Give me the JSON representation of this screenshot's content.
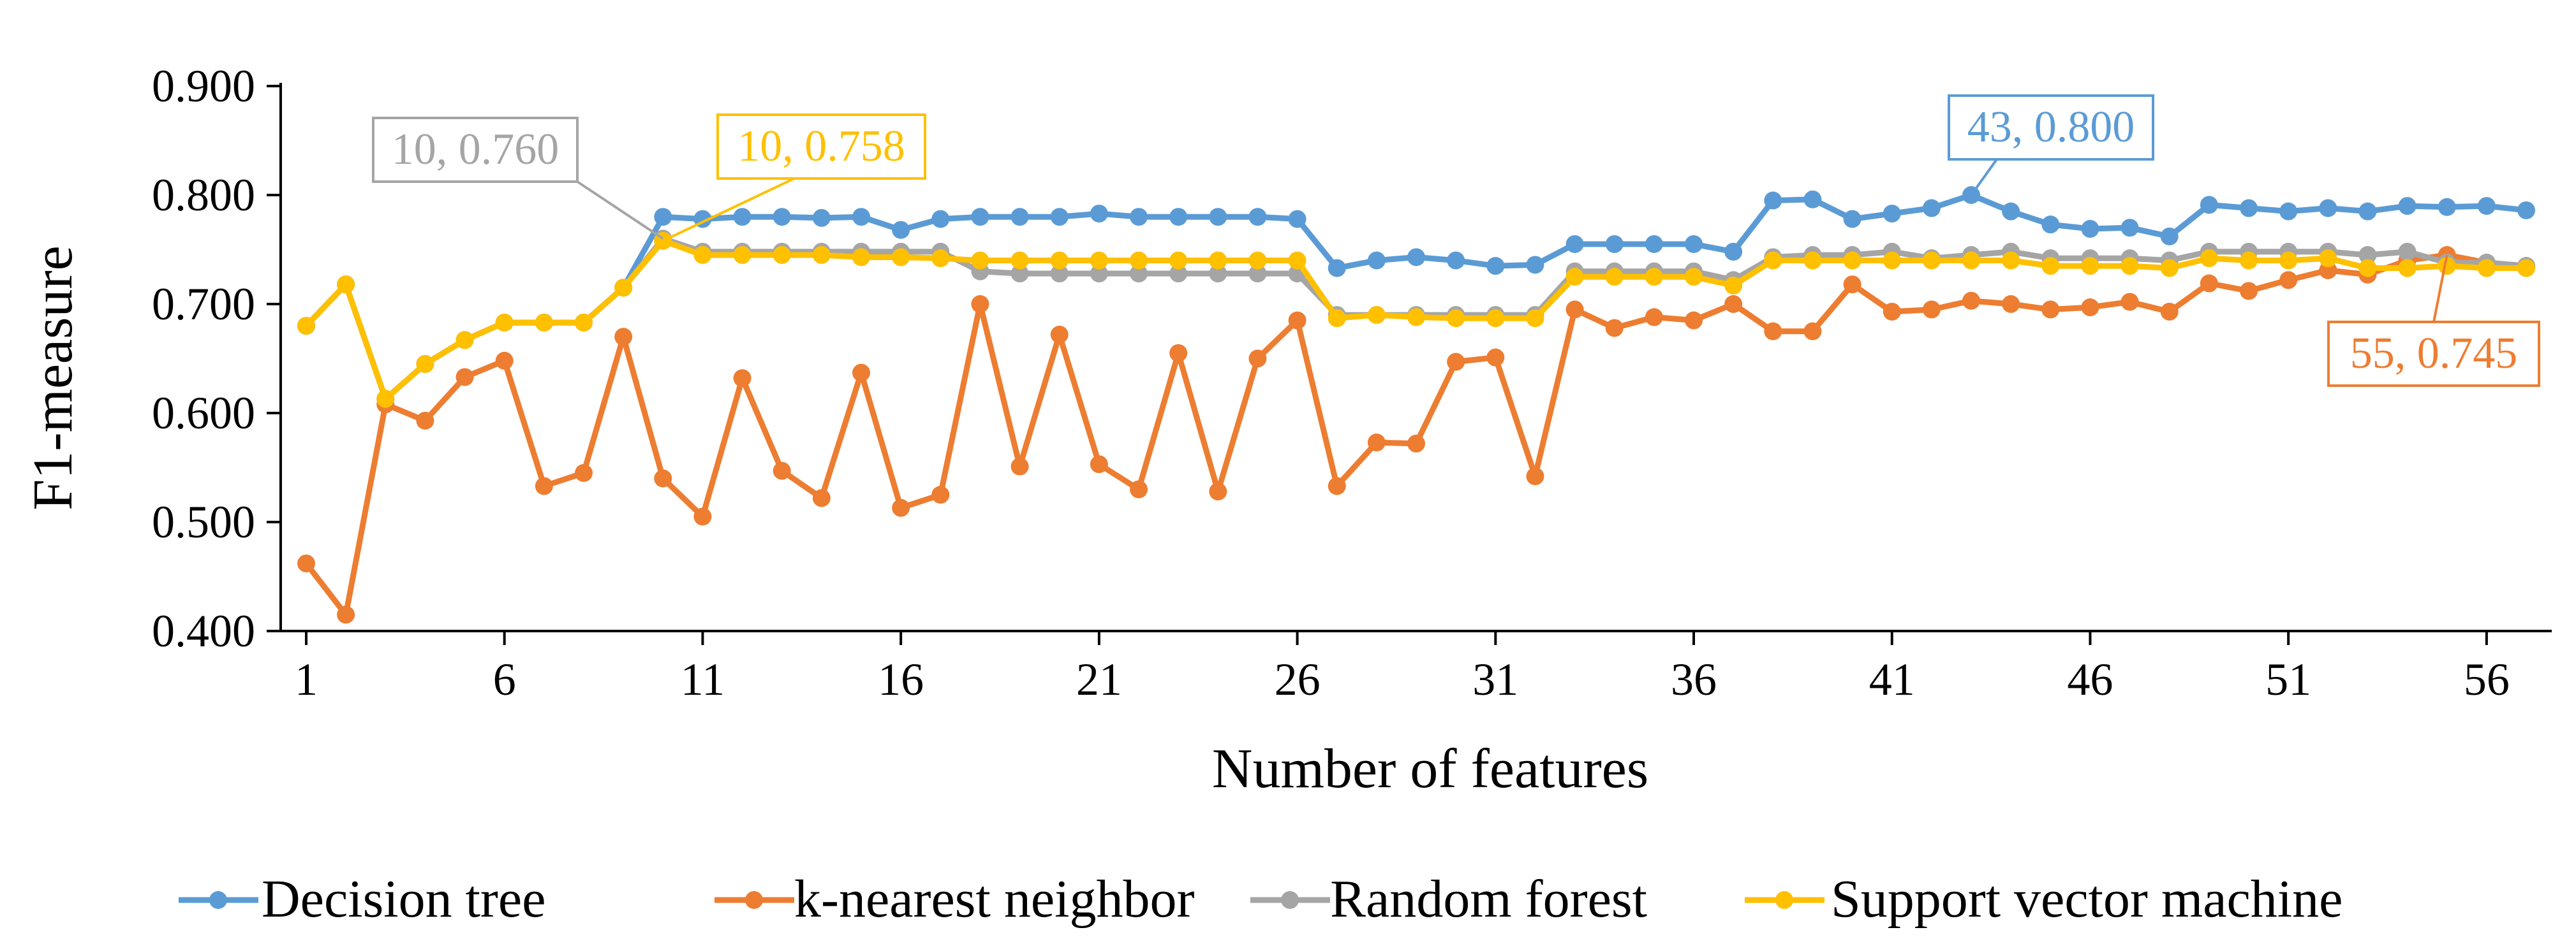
{
  "chart_data": {
    "type": "line",
    "title": "",
    "xlabel": "Number of features",
    "ylabel": "F1-measure",
    "x": [
      1,
      2,
      3,
      4,
      5,
      6,
      7,
      8,
      9,
      10,
      11,
      12,
      13,
      14,
      15,
      16,
      17,
      18,
      19,
      20,
      21,
      22,
      23,
      24,
      25,
      26,
      27,
      28,
      29,
      30,
      31,
      32,
      33,
      34,
      35,
      36,
      37,
      38,
      39,
      40,
      41,
      42,
      43,
      44,
      45,
      46,
      47,
      48,
      49,
      50,
      51,
      52,
      53,
      54,
      55,
      56,
      57
    ],
    "xlim": [
      1,
      57
    ],
    "ylim": [
      0.4,
      0.9
    ],
    "x_ticks": [
      1,
      6,
      11,
      16,
      21,
      26,
      31,
      36,
      41,
      46,
      51,
      56
    ],
    "x_tick_labels": [
      "1",
      "6",
      "11",
      "16",
      "21",
      "26",
      "31",
      "36",
      "41",
      "46",
      "51",
      "56"
    ],
    "y_ticks": [
      0.4,
      0.5,
      0.6,
      0.7,
      0.8,
      0.9
    ],
    "y_tick_labels": [
      "0.400",
      "0.500",
      "0.600",
      "0.700",
      "0.800",
      "0.900"
    ],
    "grid": false,
    "legend_position": "bottom",
    "series": [
      {
        "name": "Decision tree",
        "color": "#5B9BD5",
        "values": [
          0.68,
          0.718,
          0.613,
          0.645,
          0.667,
          0.683,
          0.683,
          0.683,
          0.715,
          0.78,
          0.778,
          0.78,
          0.78,
          0.779,
          0.78,
          0.768,
          0.778,
          0.78,
          0.78,
          0.78,
          0.783,
          0.78,
          0.78,
          0.78,
          0.78,
          0.778,
          0.733,
          0.74,
          0.743,
          0.74,
          0.735,
          0.736,
          0.755,
          0.755,
          0.755,
          0.755,
          0.748,
          0.795,
          0.796,
          0.778,
          0.783,
          0.788,
          0.8,
          0.785,
          0.773,
          0.769,
          0.77,
          0.762,
          0.791,
          0.788,
          0.785,
          0.788,
          0.785,
          0.79,
          0.789,
          0.79,
          0.786
        ]
      },
      {
        "name": "k-nearest neighbor",
        "color": "#ED7D31",
        "values": [
          0.462,
          0.415,
          0.608,
          0.593,
          0.633,
          0.648,
          0.533,
          0.545,
          0.67,
          0.54,
          0.505,
          0.632,
          0.547,
          0.522,
          0.637,
          0.513,
          0.525,
          0.7,
          0.551,
          0.672,
          0.553,
          0.53,
          0.655,
          0.528,
          0.65,
          0.685,
          0.533,
          0.573,
          0.572,
          0.647,
          0.651,
          0.542,
          0.695,
          0.678,
          0.688,
          0.685,
          0.7,
          0.675,
          0.675,
          0.718,
          0.693,
          0.695,
          0.703,
          0.7,
          0.695,
          0.697,
          0.702,
          0.693,
          0.719,
          0.712,
          0.722,
          0.731,
          0.727,
          0.74,
          0.745,
          0.738,
          0.735
        ]
      },
      {
        "name": "Random forest",
        "color": "#A5A5A5",
        "values": [
          0.68,
          0.718,
          0.613,
          0.645,
          0.667,
          0.683,
          0.683,
          0.683,
          0.715,
          0.76,
          0.748,
          0.748,
          0.748,
          0.748,
          0.748,
          0.748,
          0.748,
          0.73,
          0.728,
          0.728,
          0.728,
          0.728,
          0.728,
          0.728,
          0.728,
          0.728,
          0.69,
          0.69,
          0.69,
          0.69,
          0.69,
          0.69,
          0.73,
          0.73,
          0.73,
          0.73,
          0.722,
          0.743,
          0.745,
          0.745,
          0.748,
          0.742,
          0.745,
          0.748,
          0.742,
          0.742,
          0.742,
          0.74,
          0.748,
          0.748,
          0.748,
          0.748,
          0.745,
          0.748,
          0.738,
          0.738,
          0.735
        ]
      },
      {
        "name": "Support vector machine",
        "color": "#FFC000",
        "values": [
          0.68,
          0.718,
          0.613,
          0.645,
          0.667,
          0.683,
          0.683,
          0.683,
          0.715,
          0.758,
          0.745,
          0.745,
          0.745,
          0.745,
          0.743,
          0.743,
          0.742,
          0.74,
          0.74,
          0.74,
          0.74,
          0.74,
          0.74,
          0.74,
          0.74,
          0.74,
          0.687,
          0.69,
          0.688,
          0.687,
          0.687,
          0.687,
          0.725,
          0.725,
          0.725,
          0.725,
          0.717,
          0.74,
          0.74,
          0.74,
          0.74,
          0.74,
          0.74,
          0.74,
          0.735,
          0.735,
          0.735,
          0.733,
          0.742,
          0.74,
          0.74,
          0.742,
          0.733,
          0.733,
          0.735,
          0.733,
          0.733
        ]
      }
    ],
    "annotations": [
      {
        "text": "10, 0.760",
        "series": 2,
        "x": 10,
        "y": 0.76,
        "color": "#A5A5A5"
      },
      {
        "text": "10, 0.758",
        "series": 3,
        "x": 10,
        "y": 0.758,
        "color": "#FFC000"
      },
      {
        "text": "43, 0.800",
        "series": 0,
        "x": 43,
        "y": 0.8,
        "color": "#5B9BD5"
      },
      {
        "text": "55, 0.745",
        "series": 1,
        "x": 55,
        "y": 0.745,
        "color": "#ED7D31"
      }
    ]
  }
}
